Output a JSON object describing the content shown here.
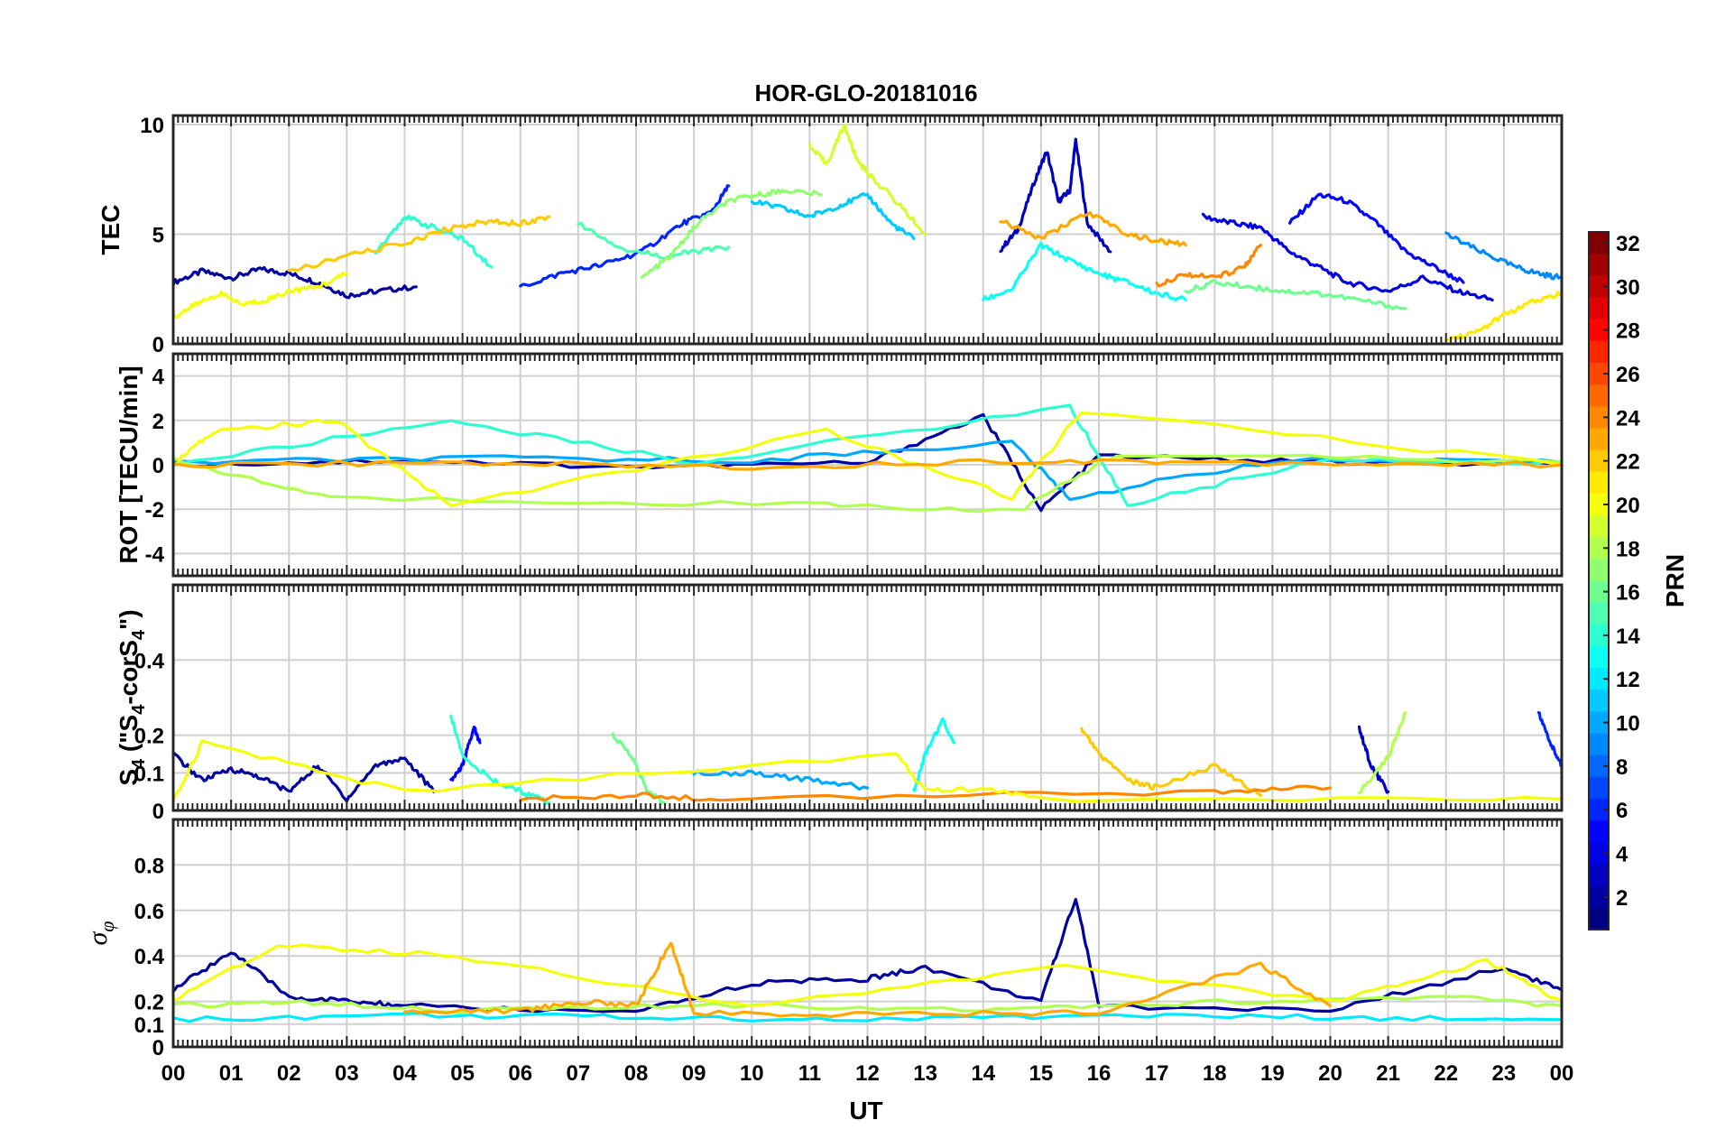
{
  "title": "HOR-GLO-20181016",
  "chart_data": {
    "type": "line",
    "title": "HOR-GLO-20181016",
    "xlabel": "UT",
    "x_ticks": [
      "00",
      "01",
      "02",
      "03",
      "04",
      "05",
      "06",
      "07",
      "08",
      "09",
      "10",
      "11",
      "12",
      "13",
      "14",
      "15",
      "16",
      "17",
      "18",
      "19",
      "20",
      "21",
      "22",
      "23",
      "00"
    ],
    "x_range_hours": [
      0,
      24
    ],
    "colorbar": {
      "label": "PRN",
      "range": [
        1,
        32
      ],
      "ticks": [
        "2",
        "4",
        "6",
        "8",
        "10",
        "12",
        "14",
        "16",
        "18",
        "20",
        "22",
        "24",
        "26",
        "28",
        "30",
        "32"
      ],
      "colormap": "jet"
    },
    "panels": [
      {
        "id": "tec",
        "ylabel": "TEC",
        "ylim": [
          0,
          10
        ],
        "y_ticks": [
          "0",
          "5",
          "10"
        ],
        "series": [
          {
            "prn": 2,
            "x": [
              0,
              0.5,
              1,
              1.5,
              2,
              2.5,
              3,
              3.5,
              4.2
            ],
            "y": [
              2.8,
              3.3,
              3.0,
              3.4,
              3.2,
              2.8,
              2.2,
              2.4,
              2.6
            ]
          },
          {
            "prn": 3,
            "x": [
              14.3,
              14.6,
              14.9,
              15.1,
              15.3,
              15.5,
              15.6,
              15.8,
              16.2
            ],
            "y": [
              4.3,
              5.2,
              7.5,
              8.8,
              6.5,
              7.0,
              9.3,
              5.5,
              4.2
            ]
          },
          {
            "prn": 4,
            "x": [
              17.8,
              18.3,
              18.8,
              19.3,
              19.8,
              20.3,
              21.0,
              21.6,
              22.2,
              22.8
            ],
            "y": [
              5.8,
              5.5,
              5.3,
              4.2,
              3.5,
              2.8,
              2.4,
              3.0,
              2.4,
              2.0
            ]
          },
          {
            "prn": 5,
            "x": [
              19.3,
              19.8,
              20.3,
              20.8,
              21.3,
              21.8,
              22.3
            ],
            "y": [
              5.5,
              6.8,
              6.5,
              5.5,
              4.2,
              3.5,
              2.8
            ]
          },
          {
            "prn": 6,
            "x": [
              6.0,
              6.7,
              7.4,
              8.1,
              8.8,
              9.3,
              9.6
            ],
            "y": [
              2.6,
              3.2,
              3.6,
              4.2,
              5.5,
              6.0,
              7.2
            ]
          },
          {
            "prn": 9,
            "x": [
              22.0,
              22.6,
              23.2,
              23.6,
              24.0
            ],
            "y": [
              5.0,
              4.2,
              3.5,
              3.2,
              3.0
            ]
          },
          {
            "prn": 11,
            "x": [
              10.0,
              10.5,
              11.0,
              11.5,
              12.0,
              12.4,
              12.8
            ],
            "y": [
              6.5,
              6.2,
              5.8,
              6.3,
              6.8,
              5.5,
              4.8
            ]
          },
          {
            "prn": 13,
            "x": [
              14.0,
              14.5,
              15.0,
              15.5,
              16.0,
              16.5,
              17.0,
              17.5
            ],
            "y": [
              2.0,
              2.5,
              4.5,
              3.8,
              3.2,
              2.8,
              2.3,
              2.0
            ]
          },
          {
            "prn": 14,
            "x": [
              3.5,
              4.0,
              4.5,
              5.0,
              5.5
            ],
            "y": [
              4.2,
              5.8,
              5.3,
              4.8,
              3.5
            ]
          },
          {
            "prn": 15,
            "x": [
              7.0,
              7.8,
              8.5,
              9.0,
              9.6
            ],
            "y": [
              5.5,
              4.3,
              4.0,
              4.2,
              4.4
            ]
          },
          {
            "prn": 16,
            "x": [
              17.5,
              18.0,
              18.6,
              19.2,
              19.8,
              20.5,
              21.3
            ],
            "y": [
              2.4,
              2.8,
              2.6,
              2.4,
              2.3,
              2.0,
              1.6
            ]
          },
          {
            "prn": 17,
            "x": [
              8.1,
              8.6,
              9.1,
              9.6,
              10.1,
              10.6,
              11.2
            ],
            "y": [
              3.0,
              4.0,
              5.6,
              6.5,
              6.8,
              7.0,
              6.8
            ]
          },
          {
            "prn": 19,
            "x": [
              11.0,
              11.3,
              11.6,
              11.8,
              12.0,
              12.5,
              13.0
            ],
            "y": [
              9.0,
              8.2,
              10.0,
              8.5,
              7.8,
              6.5,
              5.0
            ]
          },
          {
            "prn": 20,
            "x": [
              0,
              0.4,
              0.8,
              1.2,
              1.6,
              2.0,
              2.5,
              3.0
            ],
            "y": [
              1.2,
              1.8,
              2.3,
              1.8,
              2.0,
              2.4,
              2.6,
              3.2
            ]
          },
          {
            "prn": 21,
            "x": [
              22.0,
              22.5,
              23.0,
              23.5,
              24.0
            ],
            "y": [
              0.2,
              0.5,
              1.3,
              1.9,
              2.3
            ]
          },
          {
            "prn": 22,
            "x": [
              2.0,
              3.0,
              4.0,
              4.8,
              5.5,
              6.0,
              6.5
            ],
            "y": [
              3.3,
              4.0,
              4.6,
              5.3,
              5.6,
              5.5,
              5.8
            ]
          },
          {
            "prn": 23,
            "x": [
              14.3,
              15.0,
              15.8,
              16.5,
              17.0,
              17.5
            ],
            "y": [
              5.6,
              4.8,
              6.0,
              5.0,
              4.7,
              4.5
            ]
          },
          {
            "prn": 24,
            "x": [
              17.0,
              17.5,
              18.0,
              18.5,
              18.8
            ],
            "y": [
              2.7,
              3.2,
              3.0,
              3.5,
              4.5
            ]
          }
        ]
      },
      {
        "id": "rot",
        "ylabel": "ROT [TECU/min]",
        "ylim": [
          -5,
          5
        ],
        "y_ticks": [
          "-4",
          "-2",
          "0",
          "2",
          "4"
        ],
        "series": [
          {
            "prn": 2,
            "x": [
              0,
              4,
              8,
              12,
              14,
              15,
              16,
              20,
              24
            ],
            "y": [
              0,
              0.2,
              -0.1,
              0.1,
              2.2,
              -2.0,
              0.4,
              0.1,
              0
            ]
          },
          {
            "prn": 10,
            "x": [
              0,
              5,
              10,
              14.5,
              15.5,
              19,
              24
            ],
            "y": [
              0.1,
              0.3,
              0.2,
              1.0,
              -1.5,
              0.2,
              0.1
            ]
          },
          {
            "prn": 14,
            "x": [
              0,
              4.8,
              9,
              15.5,
              16.5,
              20,
              24
            ],
            "y": [
              0,
              2.0,
              0.1,
              2.6,
              -1.8,
              0.3,
              0
            ]
          },
          {
            "prn": 18,
            "x": [
              0,
              2.7,
              11.3,
              14.6,
              16.3,
              24
            ],
            "y": [
              0.2,
              -1.5,
              -1.8,
              -2.1,
              0.5,
              0.1
            ]
          },
          {
            "prn": 20,
            "x": [
              0,
              0.7,
              2.8,
              4.8,
              11.3,
              14.5,
              15.7,
              24
            ],
            "y": [
              0,
              1.5,
              2.0,
              -1.8,
              1.5,
              -1.5,
              2.4,
              0
            ]
          },
          {
            "prn": 23,
            "x": [
              0,
              5,
              10,
              15,
              18.5,
              24
            ],
            "y": [
              0,
              0.1,
              -0.1,
              0.2,
              0.1,
              0
            ]
          }
        ]
      },
      {
        "id": "s4",
        "ylabel": "S4 (\"S4-corS4\")",
        "ylim": [
          0,
          0.6
        ],
        "y_ticks": [
          "0",
          "0.1",
          "0.2",
          "0.4"
        ],
        "series": [
          {
            "prn": 2,
            "x": [
              0,
              0.5,
              1.0,
              1.5,
              2.0,
              2.5,
              3.0,
              3.5,
              4.0,
              4.5
            ],
            "y": [
              0.15,
              0.08,
              0.11,
              0.09,
              0.05,
              0.12,
              0.03,
              0.12,
              0.14,
              0.05
            ]
          },
          {
            "prn": 5,
            "x": [
              4.8,
              5.0,
              5.2,
              5.3
            ],
            "y": [
              0.08,
              0.12,
              0.22,
              0.18
            ]
          },
          {
            "prn": 3,
            "x": [
              20.5,
              20.7,
              21.0
            ],
            "y": [
              0.22,
              0.12,
              0.05
            ]
          },
          {
            "prn": 6,
            "x": [
              23.6,
              23.8,
              24.0
            ],
            "y": [
              0.26,
              0.18,
              0.12
            ]
          },
          {
            "prn": 14,
            "x": [
              4.8,
              5.0,
              5.5,
              6.0,
              6.5
            ],
            "y": [
              0.25,
              0.15,
              0.08,
              0.05,
              0.02
            ]
          },
          {
            "prn": 16,
            "x": [
              7.6,
              7.9,
              8.2,
              8.5
            ],
            "y": [
              0.2,
              0.15,
              0.05,
              0.02
            ]
          },
          {
            "prn": 13,
            "x": [
              12.8,
              13.0,
              13.3,
              13.5
            ],
            "y": [
              0.05,
              0.15,
              0.24,
              0.18
            ]
          },
          {
            "prn": 10,
            "x": [
              9.0,
              10.0,
              11.0,
              12.0
            ],
            "y": [
              0.1,
              0.1,
              0.08,
              0.06
            ]
          },
          {
            "prn": 22,
            "x": [
              15.7,
              16.0,
              16.5,
              17.0,
              18.0,
              18.8
            ],
            "y": [
              0.22,
              0.15,
              0.08,
              0.06,
              0.12,
              0.04
            ]
          },
          {
            "prn": 18,
            "x": [
              20.5,
              21.0,
              21.3
            ],
            "y": [
              0.05,
              0.14,
              0.26
            ]
          },
          {
            "prn": 24,
            "x": [
              6.0,
              8.0,
              9.5,
              18.0,
              20.0
            ],
            "y": [
              0.03,
              0.04,
              0.03,
              0.05,
              0.06
            ]
          },
          {
            "prn": 20,
            "x": [
              0,
              0.5,
              4.0,
              12.5,
              13.0,
              14.0,
              15.0,
              24.0
            ],
            "y": [
              0.02,
              0.18,
              0.05,
              0.15,
              0.05,
              0.06,
              0.03,
              0.03
            ]
          }
        ]
      },
      {
        "id": "sigma_phi",
        "ylabel": "σφ",
        "ylim": [
          0,
          1
        ],
        "y_ticks": [
          "0",
          "0.1",
          "0.2",
          "0.4",
          "0.6",
          "0.8"
        ],
        "series": [
          {
            "prn": 2,
            "x": [
              0,
              1,
              2,
              3,
              4,
              8,
              10,
              12,
              13,
              15,
              15.6,
              16,
              20,
              23,
              24
            ],
            "y": [
              0.25,
              0.42,
              0.22,
              0.2,
              0.18,
              0.15,
              0.28,
              0.3,
              0.35,
              0.2,
              0.66,
              0.18,
              0.16,
              0.35,
              0.25
            ]
          },
          {
            "prn": 12,
            "x": [
              0,
              4,
              8,
              12,
              16,
              20,
              24
            ],
            "y": [
              0.12,
              0.14,
              0.13,
              0.12,
              0.14,
              0.13,
              0.12
            ]
          },
          {
            "prn": 18,
            "x": [
              0,
              2,
              5,
              9,
              14,
              17,
              22,
              24
            ],
            "y": [
              0.18,
              0.2,
              0.16,
              0.18,
              0.17,
              0.19,
              0.22,
              0.18
            ]
          },
          {
            "prn": 20,
            "x": [
              0,
              1.8,
              4.9,
              10,
              15.4,
              20,
              22.7,
              24
            ],
            "y": [
              0.2,
              0.45,
              0.4,
              0.18,
              0.35,
              0.2,
              0.38,
              0.2
            ]
          },
          {
            "prn": 23,
            "x": [
              4,
              6,
              7,
              8,
              8.6,
              9,
              12,
              16,
              18.8,
              20
            ],
            "y": [
              0.15,
              0.16,
              0.2,
              0.18,
              0.46,
              0.15,
              0.14,
              0.15,
              0.36,
              0.18
            ]
          }
        ]
      }
    ]
  }
}
